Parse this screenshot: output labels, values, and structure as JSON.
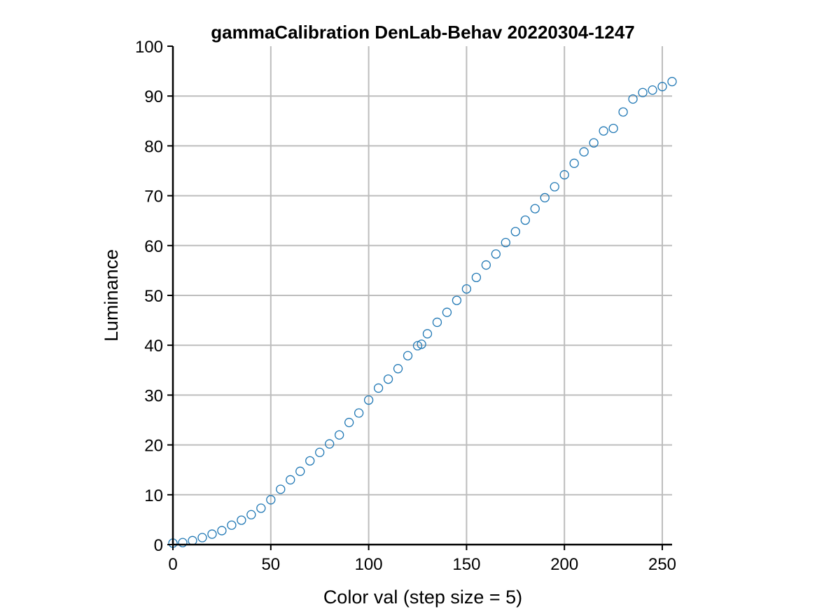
{
  "chart_data": {
    "type": "scatter",
    "title": "gammaCalibration DenLab-Behav 20220304-1247",
    "xlabel": "Color val (step size = 5)",
    "ylabel": "Luminance",
    "xlim": [
      0,
      255
    ],
    "ylim": [
      0,
      100
    ],
    "xticks": [
      0,
      50,
      100,
      150,
      200,
      250
    ],
    "yticks": [
      0,
      10,
      20,
      30,
      40,
      50,
      60,
      70,
      80,
      90,
      100
    ],
    "xtick_labels": [
      "0",
      "50",
      "100",
      "150",
      "200",
      "250"
    ],
    "ytick_labels": [
      "0",
      "10",
      "20",
      "30",
      "40",
      "50",
      "60",
      "70",
      "80",
      "90",
      "100"
    ],
    "grid": true,
    "marker_color": "#1f77b4",
    "series": [
      {
        "x": [
          0,
          5,
          10,
          15,
          20,
          25,
          30,
          35,
          40,
          45,
          50,
          55,
          60,
          65,
          70,
          75,
          80,
          85,
          90,
          95,
          100,
          105,
          110,
          115,
          120,
          125,
          127,
          130,
          135,
          140,
          145,
          150,
          155,
          160,
          165,
          170,
          175,
          180,
          185,
          190,
          195,
          200,
          205,
          210,
          215,
          220,
          225,
          230,
          235,
          240,
          245,
          250,
          255
        ],
        "y": [
          0.3,
          0.4,
          0.8,
          1.4,
          2.1,
          2.8,
          3.9,
          4.9,
          6.0,
          7.3,
          9.0,
          11.1,
          13.0,
          14.7,
          16.8,
          18.5,
          20.2,
          22.0,
          24.5,
          26.4,
          29.0,
          31.4,
          33.2,
          35.3,
          37.9,
          39.9,
          40.2,
          42.3,
          44.6,
          46.6,
          49.0,
          51.3,
          53.6,
          56.1,
          58.3,
          60.6,
          62.8,
          65.1,
          67.4,
          69.6,
          71.8,
          74.2,
          76.5,
          78.8,
          80.6,
          83.0,
          83.5,
          86.8,
          89.4,
          90.7,
          91.2,
          91.9,
          92.9
        ]
      }
    ]
  }
}
